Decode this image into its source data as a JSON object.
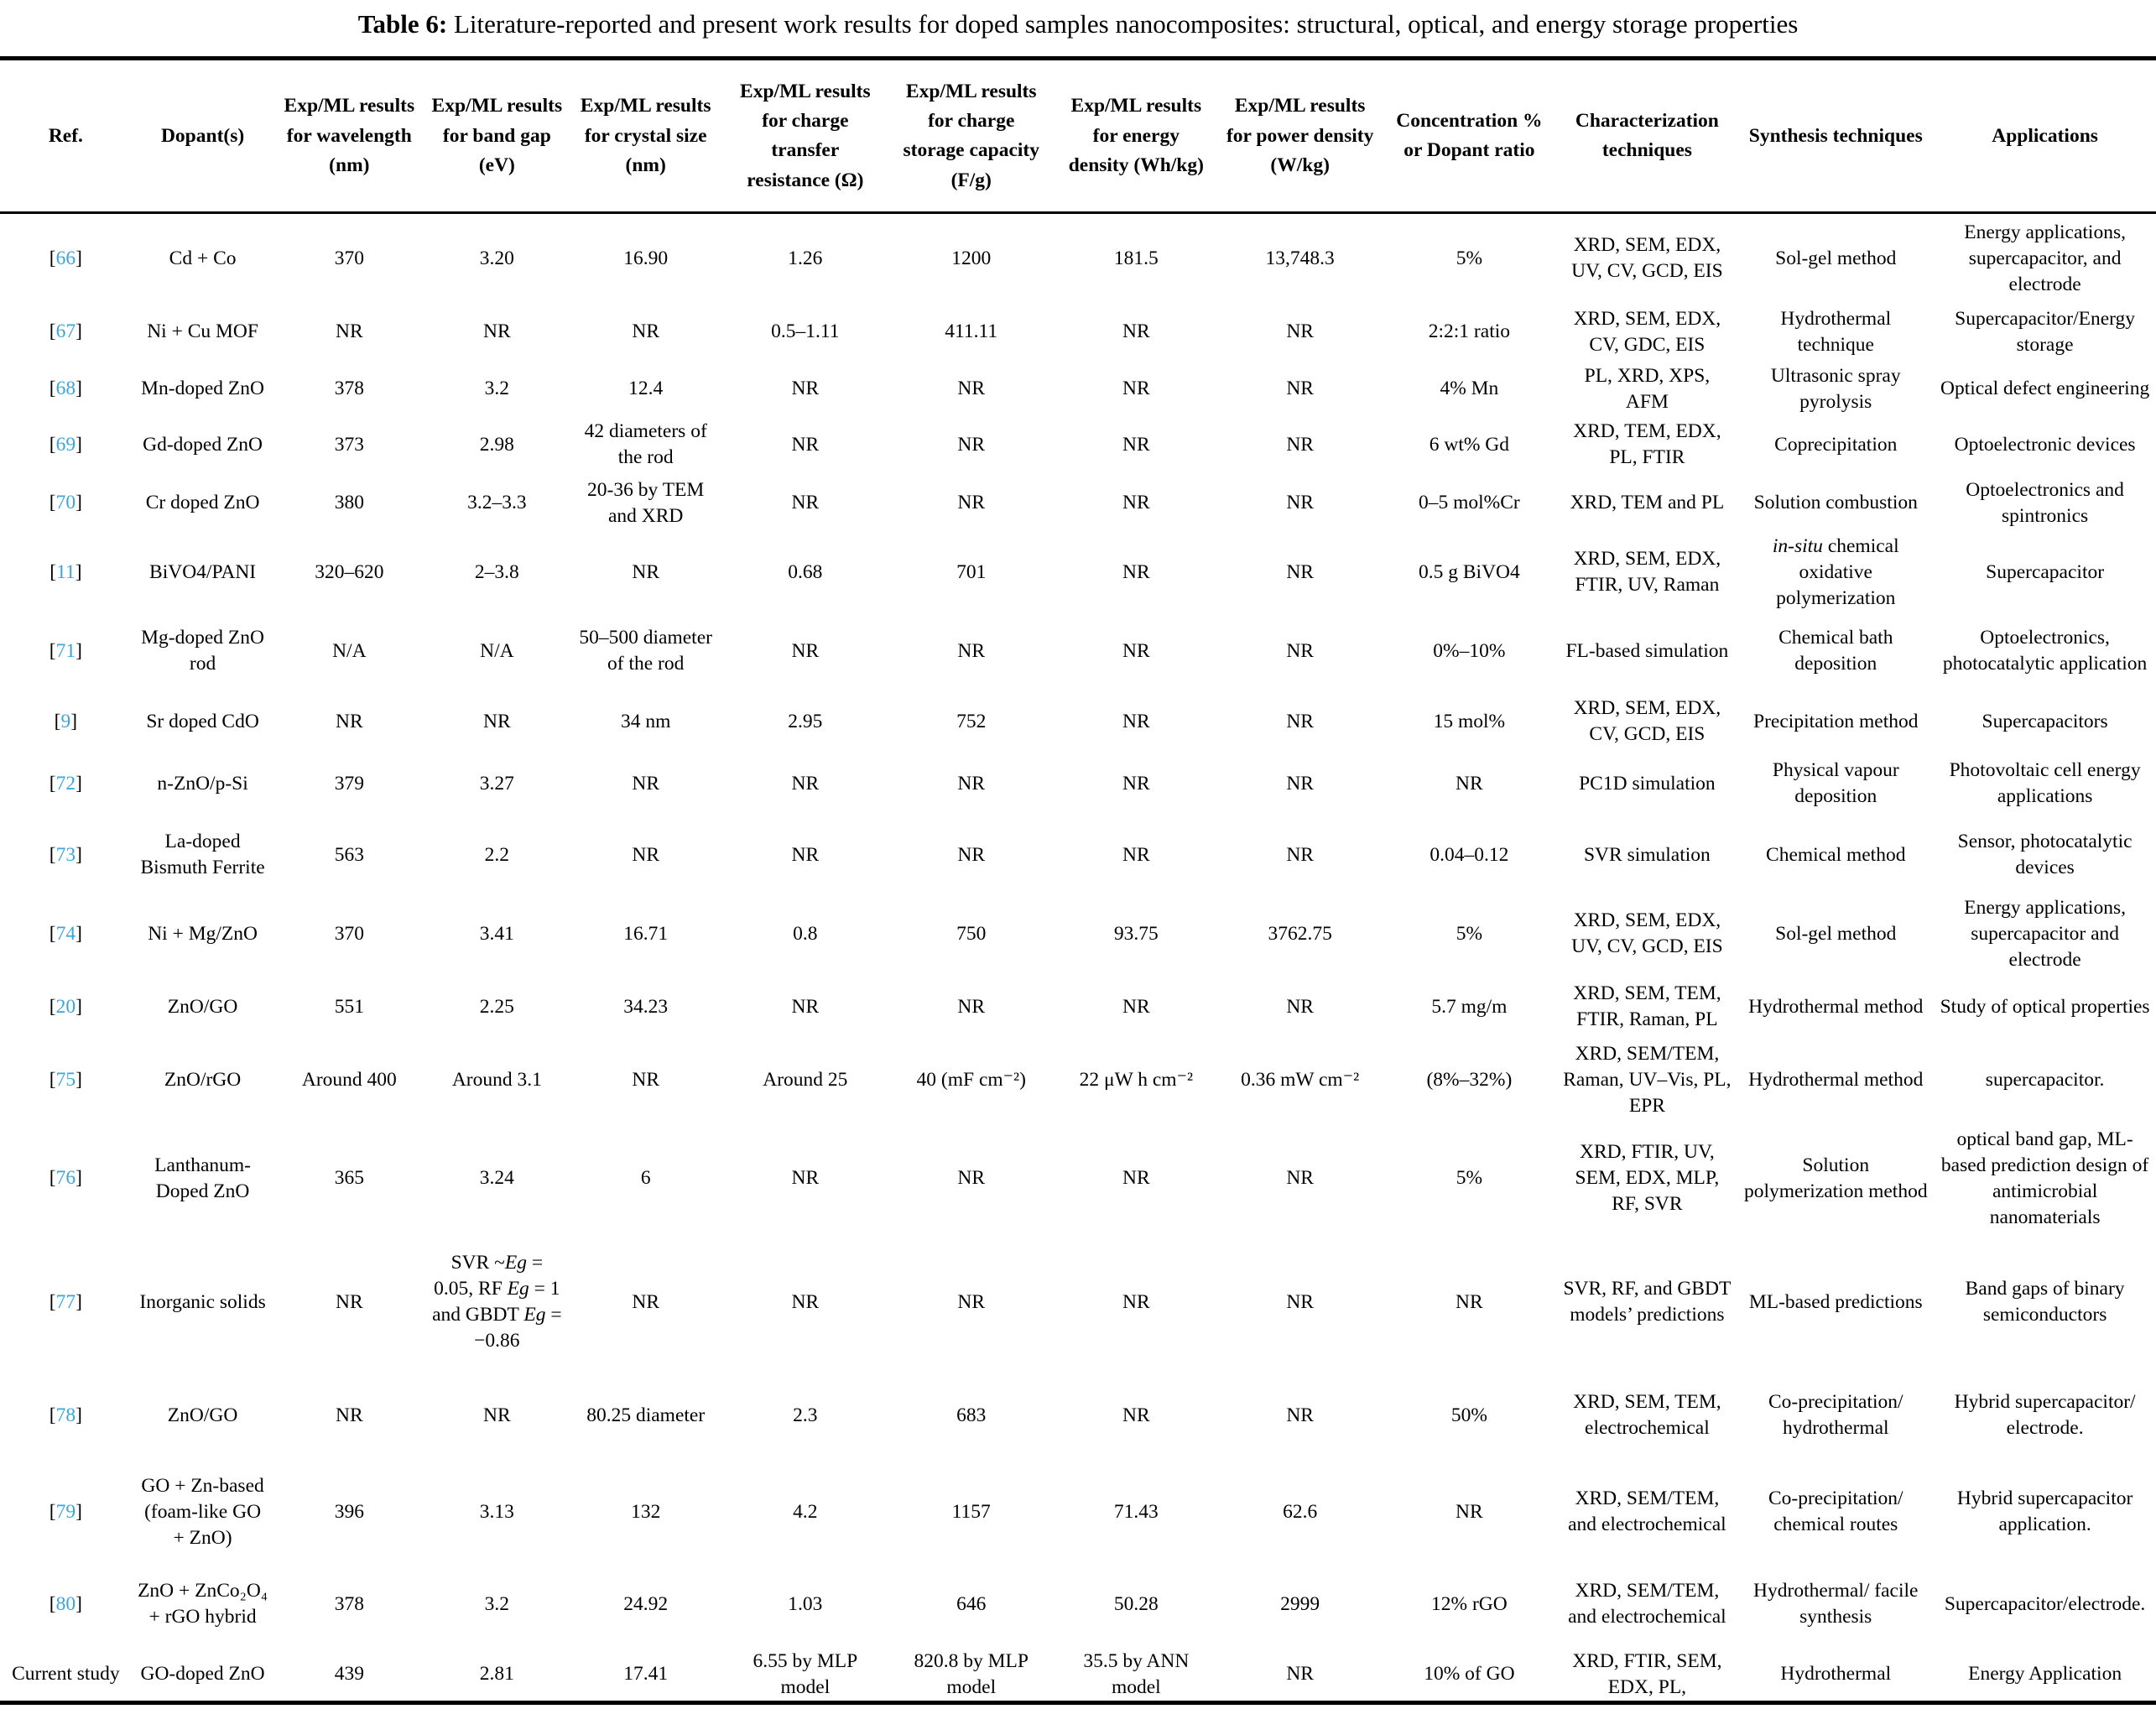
{
  "title": {
    "label": "Table 6:",
    "text": " Literature-reported and present work results for doped samples nanocomposites: structural, optical, and energy storage properties"
  },
  "colors": {
    "citation_link": "#3AA5DC",
    "text": "#000000"
  },
  "table": {
    "ref_open": "[",
    "ref_close": "]",
    "columns": [
      "Ref.",
      "Dopant(s)",
      "Exp/ML results for wavelength (nm)",
      "Exp/ML results for band gap (eV)",
      "Exp/ML results for crystal size (nm)",
      "Exp/ML results for charge transfer resistance (Ω)",
      "Exp/ML results for charge storage capacity (F/g)",
      "Exp/ML results for energy density (Wh/kg)",
      "Exp/ML results for power density (W/kg)",
      "Concentration % or Dopant ratio",
      "Characterization techniques",
      "Synthesis techniques",
      "Applications"
    ],
    "column_keys": [
      "dopant",
      "wavelength",
      "band_gap",
      "crystal_size",
      "charge_transfer_resistance",
      "charge_storage_capacity",
      "energy_density",
      "power_density",
      "concentration",
      "characterization",
      "synthesis",
      "applications"
    ],
    "rows": [
      {
        "ref": {
          "text": "66",
          "link": true
        },
        "cells": [
          "Cd + Co",
          "370",
          "3.20",
          "16.90",
          "1.26",
          "1200",
          "181.5",
          "13,748.3",
          "5%",
          "XRD, SEM, EDX, UV, CV, GCD, EIS",
          "Sol-gel method",
          "Energy applications, supercapacitor, and electrode"
        ]
      },
      {
        "ref": {
          "text": "67",
          "link": true
        },
        "cells": [
          "Ni + Cu MOF",
          "NR",
          "NR",
          "NR",
          "0.5–1.11",
          "411.11",
          "NR",
          "NR",
          "2:2:1 ratio",
          "XRD, SEM, EDX, CV, GDC, EIS",
          "Hydrothermal technique",
          "Supercapacitor/Energy storage"
        ]
      },
      {
        "ref": {
          "text": "68",
          "link": true
        },
        "cells": [
          "Mn-doped ZnO",
          "378",
          "3.2",
          "12.4",
          "NR",
          "NR",
          "NR",
          "NR",
          "4% Mn",
          "PL, XRD, XPS, AFM",
          "Ultrasonic spray pyrolysis",
          "Optical defect engineering"
        ]
      },
      {
        "ref": {
          "text": "69",
          "link": true
        },
        "cells": [
          "Gd-doped ZnO",
          "373",
          "2.98",
          "42 diameters of the rod",
          "NR",
          "NR",
          "NR",
          "NR",
          "6 wt% Gd",
          "XRD, TEM, EDX, PL, FTIR",
          "Coprecipitation",
          "Optoelectronic devices"
        ]
      },
      {
        "ref": {
          "text": "70",
          "link": true
        },
        "cells": [
          "Cr doped ZnO",
          "380",
          "3.2–3.3",
          "20-36 by TEM and XRD",
          "NR",
          "NR",
          "NR",
          "NR",
          "0–5 mol%Cr",
          "XRD, TEM and PL",
          "Solution combustion",
          "Optoelectronics and spintronics"
        ]
      },
      {
        "ref": {
          "text": "11",
          "link": true
        },
        "cells": [
          "BiVO4/PANI",
          "320–620",
          "2–3.8",
          "NR",
          "0.68",
          "701",
          "NR",
          "NR",
          "0.5 g BiVO4",
          "XRD, SEM, EDX, FTIR, UV, Raman",
          "*in-situ* chemical oxidative polymerization",
          "Supercapacitor"
        ]
      },
      {
        "ref": {
          "text": "71",
          "link": true
        },
        "cells": [
          "Mg-doped ZnO rod",
          "N/A",
          "N/A",
          "50–500 diameter of the rod",
          "NR",
          "NR",
          "NR",
          "NR",
          "0%–10%",
          "FL-based simulation",
          "Chemical bath deposition",
          "Optoelectronics, photocatalytic application"
        ]
      },
      {
        "ref": {
          "text": "9",
          "link": true
        },
        "cells": [
          "Sr doped CdO",
          "NR",
          "NR",
          "34 nm",
          "2.95",
          "752",
          "NR",
          "NR",
          "15 mol%",
          "XRD, SEM, EDX, CV, GCD, EIS",
          "Precipitation method",
          "Supercapacitors"
        ]
      },
      {
        "ref": {
          "text": "72",
          "link": true
        },
        "cells": [
          "n-ZnO/p-Si",
          "379",
          "3.27",
          "NR",
          "NR",
          "NR",
          "NR",
          "NR",
          "NR",
          "PC1D simulation",
          "Physical vapour deposition",
          "Photovoltaic cell energy applications"
        ]
      },
      {
        "ref": {
          "text": "73",
          "link": true
        },
        "cells": [
          "La-doped Bismuth Ferrite",
          "563",
          "2.2",
          "NR",
          "NR",
          "NR",
          "NR",
          "NR",
          "0.04–0.12",
          "SVR simulation",
          "Chemical method",
          "Sensor, photocatalytic devices"
        ]
      },
      {
        "ref": {
          "text": "74",
          "link": true
        },
        "cells": [
          "Ni + Mg/ZnO",
          "370",
          "3.41",
          "16.71",
          "0.8",
          "750",
          "93.75",
          "3762.75",
          "5%",
          "XRD, SEM, EDX, UV, CV, GCD, EIS",
          "Sol-gel method",
          "Energy applications, supercapacitor and electrode"
        ]
      },
      {
        "ref": {
          "text": "20",
          "link": true
        },
        "cells": [
          "ZnO/GO",
          "551",
          "2.25",
          "34.23",
          "NR",
          "NR",
          "NR",
          "NR",
          "5.7 mg/m",
          "XRD, SEM, TEM, FTIR, Raman, PL",
          "Hydrothermal method",
          "Study of optical properties"
        ]
      },
      {
        "ref": {
          "text": "75",
          "link": true
        },
        "cells": [
          "ZnO/rGO",
          "Around 400",
          "Around 3.1",
          "NR",
          "Around 25",
          "40 (mF cm⁻²)",
          "22 μW h cm⁻²",
          "0.36 mW cm⁻²",
          "(8%–32%)",
          "XRD, SEM/TEM, Raman, UV–Vis, PL, EPR",
          "Hydrothermal method",
          "supercapacitor."
        ]
      },
      {
        "ref": {
          "text": "76",
          "link": true
        },
        "cells": [
          "Lanthanum-Doped ZnO",
          "365",
          "3.24",
          "6",
          "NR",
          "NR",
          "NR",
          "NR",
          "5%",
          "XRD, FTIR, UV, SEM, EDX, MLP, RF, SVR",
          "Solution polymerization method",
          "optical band gap, ML-based prediction design of antimicrobial nanomaterials"
        ]
      },
      {
        "ref": {
          "text": "77",
          "link": true
        },
        "cells": [
          "Inorganic solids",
          "NR",
          "SVR ~*Eg* = 0.05, RF *Eg* = 1 and GBDT *Eg* = −0.86",
          "NR",
          "NR",
          "NR",
          "NR",
          "NR",
          "NR",
          "SVR, RF, and GBDT models’ predictions",
          "ML-based predictions",
          "Band gaps of binary semiconductors"
        ]
      },
      {
        "ref": {
          "text": "78",
          "link": true
        },
        "cells": [
          "ZnO/GO",
          "NR",
          "NR",
          "80.25 diameter",
          "2.3",
          "683",
          "NR",
          "NR",
          "50%",
          "XRD, SEM, TEM, electrochemical",
          "Co-precipitation/ hydrothermal",
          "Hybrid supercapacitor/ electrode."
        ]
      },
      {
        "ref": {
          "text": "79",
          "link": true
        },
        "cells": [
          "GO + Zn-based (foam-like GO + ZnO)",
          "396",
          "3.13",
          "132",
          "4.2",
          "1157",
          "71.43",
          "62.6",
          "NR",
          "XRD, SEM/TEM, and electrochemical",
          "Co-precipitation/ chemical routes",
          "Hybrid supercapacitor application."
        ]
      },
      {
        "ref": {
          "text": "80",
          "link": true
        },
        "cells": [
          "ZnO + ZnCo₂O₄ + rGO hybrid",
          "378",
          "3.2",
          "24.92",
          "1.03",
          "646",
          "50.28",
          "2999",
          "12% rGO",
          "XRD, SEM/TEM, and electrochemical",
          "Hydrothermal/ facile synthesis",
          "Supercapacitor/electrode."
        ]
      },
      {
        "ref": {
          "text": "Current study",
          "link": false
        },
        "cells": [
          "GO-doped ZnO",
          "439",
          "2.81",
          "17.41",
          "6.55 by MLP model",
          "820.8 by MLP model",
          "35.5 by ANN model",
          "NR",
          "10% of GO",
          "XRD, FTIR, SEM, EDX, PL,",
          "Hydrothermal",
          "Energy Application"
        ]
      }
    ]
  }
}
